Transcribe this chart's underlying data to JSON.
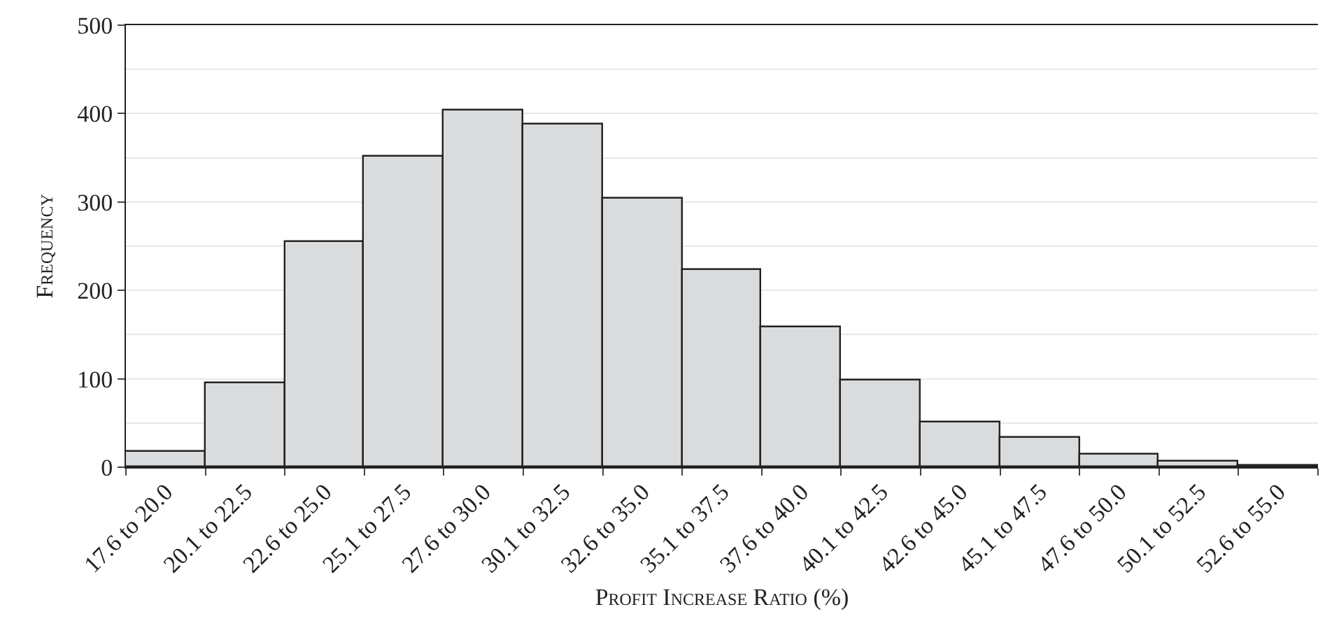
{
  "chart_data": {
    "type": "bar",
    "xlabel": "Profit Increase Ratio (%)",
    "ylabel": "Frequency",
    "categories": [
      "17.6 to 20.0",
      "20.1 to 22.5",
      "22.6 to 25.0",
      "25.1 to 27.5",
      "27.6 to 30.0",
      "30.1 to 32.5",
      "32.6 to 35.0",
      "35.1 to 37.5",
      "37.6 to 40.0",
      "40.1 to 42.5",
      "42.6 to 45.0",
      "45.1 to 47.5",
      "47.6 to 50.0",
      "50.1 to 52.5",
      "52.6 to 55.0"
    ],
    "values": [
      17,
      95,
      254,
      351,
      404,
      388,
      304,
      223,
      158,
      98,
      51,
      33,
      15,
      6,
      2
    ],
    "color": "#dadbdd",
    "ylim": [
      0,
      500
    ],
    "yticks": [
      0,
      100,
      200,
      300,
      400,
      500
    ],
    "grid": "y"
  }
}
